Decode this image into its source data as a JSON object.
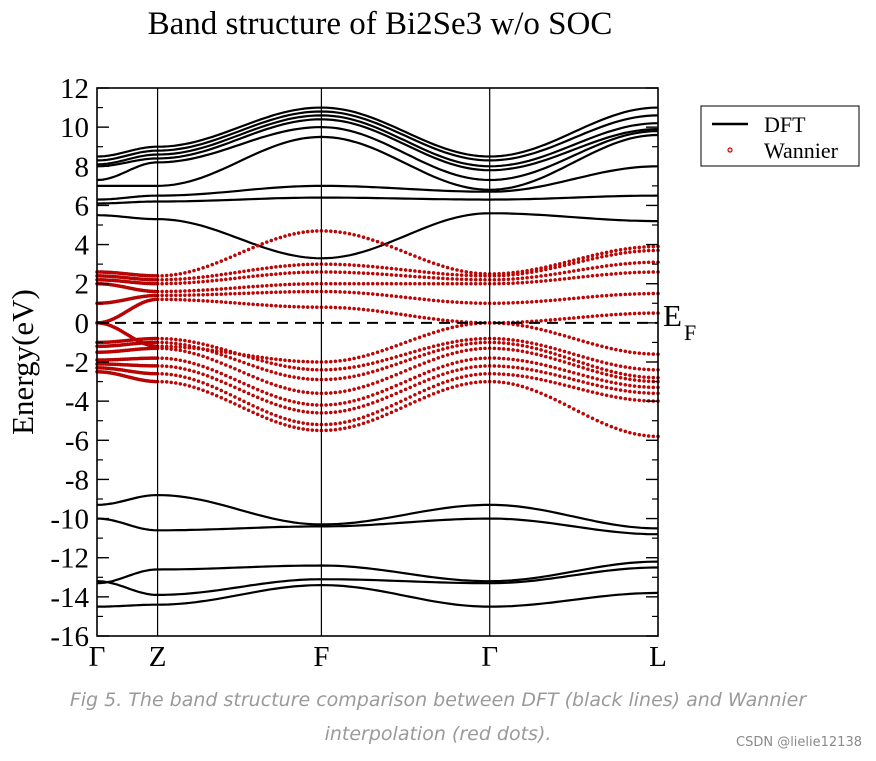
{
  "chart_data": {
    "type": "line",
    "title": "Band structure of Bi2Se3 w/o SOC",
    "xlabel": "",
    "ylabel": "Energy(eV)",
    "ylim": [
      -16,
      12
    ],
    "y_ticks": [
      "12",
      "10",
      "8",
      "6",
      "4",
      "2",
      "0",
      "-2",
      "-4",
      "-6",
      "-8",
      "-10",
      "-12",
      "-14",
      "-16"
    ],
    "k_points": [
      {
        "label": "Γ",
        "pos": 0
      },
      {
        "label": "Z",
        "pos": 0.108
      },
      {
        "label": "F",
        "pos": 0.4
      },
      {
        "label": "Γ",
        "pos": 0.7
      },
      {
        "label": "L",
        "pos": 1.0
      }
    ],
    "fermi_label": "E",
    "fermi_sub": "F",
    "fermi_energy": 0,
    "legend": {
      "position": "top-right",
      "entries": [
        {
          "name": "DFT",
          "style": "black-line"
        },
        {
          "name": "Wannier",
          "style": "red-dots"
        }
      ]
    },
    "colors": {
      "dft": "#000000",
      "wannier": "#d20000"
    },
    "series": [
      {
        "name": "DFT",
        "bands": [
          [
            -14.5,
            -14.4,
            -13.4,
            -14.5,
            -13.8
          ],
          [
            -13.2,
            -13.9,
            -13.1,
            -13.3,
            -12.5
          ],
          [
            -13.3,
            -12.6,
            -12.4,
            -13.2,
            -12.2
          ],
          [
            -10.0,
            -10.6,
            -10.4,
            -10.0,
            -10.8
          ],
          [
            -9.3,
            -8.8,
            -10.3,
            -9.3,
            -10.5
          ],
          [
            5.5,
            5.3,
            3.3,
            5.6,
            5.2
          ],
          [
            6.1,
            6.2,
            6.4,
            6.3,
            6.5
          ],
          [
            6.3,
            6.5,
            7.0,
            6.7,
            8.0
          ],
          [
            7.0,
            7.0,
            9.5,
            6.8,
            9.6
          ],
          [
            7.3,
            8.2,
            10.0,
            7.3,
            9.8
          ],
          [
            8.0,
            8.4,
            10.4,
            7.8,
            9.9
          ],
          [
            8.1,
            8.6,
            10.6,
            8.0,
            10.2
          ],
          [
            8.3,
            8.8,
            10.8,
            8.3,
            10.6
          ],
          [
            8.5,
            9.0,
            11.0,
            8.5,
            11.0
          ]
        ]
      },
      {
        "name": "Wannier",
        "bands": [
          [
            -2.5,
            -3.0,
            -5.5,
            -3.0,
            -5.8
          ],
          [
            -2.3,
            -2.6,
            -5.2,
            -2.6,
            -4.0
          ],
          [
            -2.1,
            -2.2,
            -4.6,
            -2.2,
            -3.6
          ],
          [
            -1.9,
            -1.8,
            -4.2,
            -1.8,
            -3.3
          ],
          [
            -1.5,
            -1.3,
            -3.6,
            -1.3,
            -3.0
          ],
          [
            -1.2,
            -1.0,
            -2.9,
            -1.0,
            -2.8
          ],
          [
            -1.0,
            -0.8,
            -2.4,
            -0.8,
            -2.4
          ],
          [
            0.0,
            -1.2,
            -2.0,
            0.0,
            -1.6
          ],
          [
            0.0,
            1.2,
            0.8,
            0.0,
            0.5
          ],
          [
            1.0,
            1.4,
            1.6,
            1.0,
            1.5
          ],
          [
            2.0,
            1.6,
            2.0,
            2.0,
            2.6
          ],
          [
            2.2,
            2.0,
            2.6,
            2.2,
            3.1
          ],
          [
            2.4,
            2.2,
            3.0,
            2.4,
            3.7
          ],
          [
            2.6,
            2.4,
            4.7,
            2.5,
            3.9
          ]
        ]
      }
    ]
  },
  "caption": {
    "line1": "Fig 5. The band structure comparison between DFT (black lines) and Wannier",
    "line2": "interpolation (red dots)."
  },
  "watermark": "CSDN @lielie12138"
}
